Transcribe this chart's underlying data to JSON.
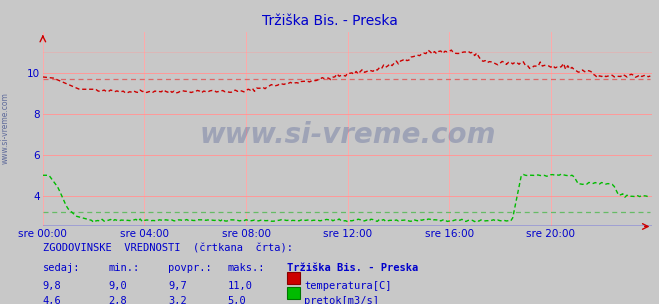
{
  "title": "Tržiška Bis. - Preska",
  "title_color": "#0000cc",
  "bg_color": "#c8c8c8",
  "plot_bg_color": "#c8c8c8",
  "grid_color": "#ff9999",
  "grid_color_v": "#ffaaaa",
  "x_ticks_labels": [
    "sre 00:00",
    "sre 04:00",
    "sre 08:00",
    "sre 12:00",
    "sre 16:00",
    "sre 20:00"
  ],
  "x_ticks_pos": [
    0,
    48,
    96,
    144,
    192,
    240
  ],
  "x_max": 288,
  "ylim": [
    2.5,
    12.0
  ],
  "y_ticks": [
    4,
    6,
    8,
    10
  ],
  "y_tick_top": 11,
  "temp_color": "#cc0000",
  "pretok_color": "#00bb00",
  "hist_temp_color": "#dd6666",
  "hist_pretok_color": "#66bb66",
  "watermark_color": "#334488",
  "watermark_alpha": 0.28,
  "tick_color": "#0000cc",
  "border_bottom_color": "#0000ff",
  "border_right_color": "#cc0000",
  "legend_title": "Tržiška Bis. - Preska",
  "label_temp": "temperatura[C]",
  "label_pretok": "pretok[m3/s]",
  "sedaj_temp": "9,8",
  "min_temp": "9,0",
  "povpr_temp": "9,7",
  "maks_temp": "11,0",
  "sedaj_pretok": "4,6",
  "min_pretok": "2,8",
  "povpr_pretok": "3,2",
  "maks_pretok": "5,0",
  "footer_text1": "ZGODOVINSKE  VREDNOSTI  (črtkana  črta):",
  "footer_col1": "sedaj:",
  "footer_col2": "min.:",
  "footer_col3": "povpr.:",
  "footer_col4": "maks.:"
}
